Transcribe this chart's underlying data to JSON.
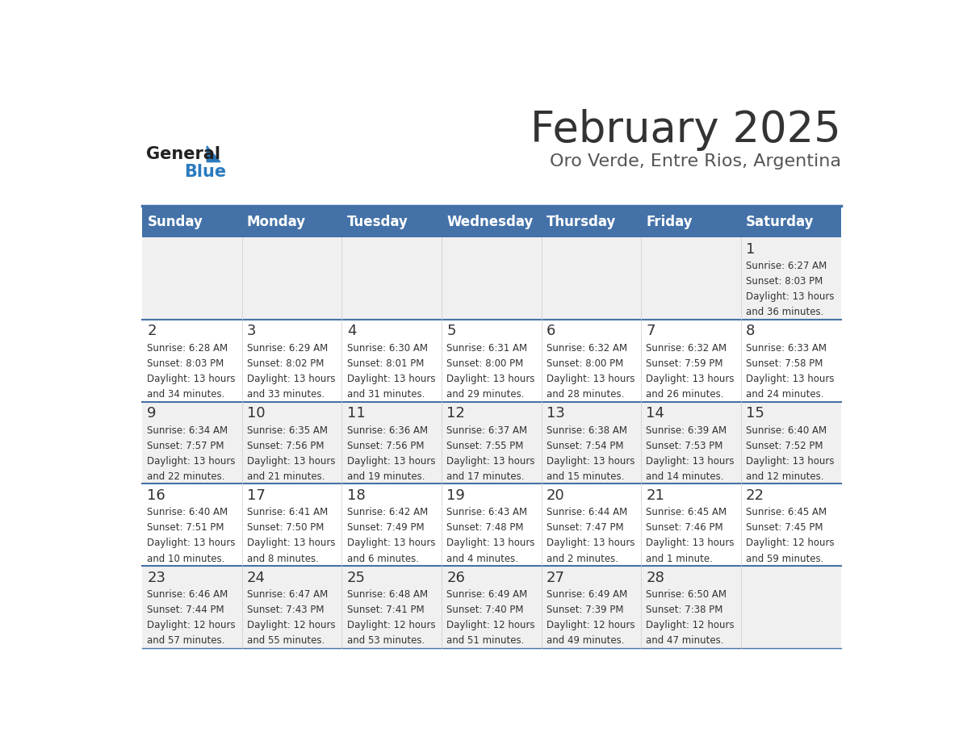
{
  "title": "February 2025",
  "subtitle": "Oro Verde, Entre Rios, Argentina",
  "header_bg": "#4472a8",
  "header_text": "#ffffff",
  "row_bg_odd": "#f0f0f0",
  "row_bg_even": "#ffffff",
  "separator_color": "#4472a8",
  "day_headers": [
    "Sunday",
    "Monday",
    "Tuesday",
    "Wednesday",
    "Thursday",
    "Friday",
    "Saturday"
  ],
  "days": [
    {
      "day": 1,
      "col": 6,
      "row": 0,
      "sunrise": "6:27 AM",
      "sunset": "8:03 PM",
      "daylight_line1": "Daylight: 13 hours",
      "daylight_line2": "and 36 minutes."
    },
    {
      "day": 2,
      "col": 0,
      "row": 1,
      "sunrise": "6:28 AM",
      "sunset": "8:03 PM",
      "daylight_line1": "Daylight: 13 hours",
      "daylight_line2": "and 34 minutes."
    },
    {
      "day": 3,
      "col": 1,
      "row": 1,
      "sunrise": "6:29 AM",
      "sunset": "8:02 PM",
      "daylight_line1": "Daylight: 13 hours",
      "daylight_line2": "and 33 minutes."
    },
    {
      "day": 4,
      "col": 2,
      "row": 1,
      "sunrise": "6:30 AM",
      "sunset": "8:01 PM",
      "daylight_line1": "Daylight: 13 hours",
      "daylight_line2": "and 31 minutes."
    },
    {
      "day": 5,
      "col": 3,
      "row": 1,
      "sunrise": "6:31 AM",
      "sunset": "8:00 PM",
      "daylight_line1": "Daylight: 13 hours",
      "daylight_line2": "and 29 minutes."
    },
    {
      "day": 6,
      "col": 4,
      "row": 1,
      "sunrise": "6:32 AM",
      "sunset": "8:00 PM",
      "daylight_line1": "Daylight: 13 hours",
      "daylight_line2": "and 28 minutes."
    },
    {
      "day": 7,
      "col": 5,
      "row": 1,
      "sunrise": "6:32 AM",
      "sunset": "7:59 PM",
      "daylight_line1": "Daylight: 13 hours",
      "daylight_line2": "and 26 minutes."
    },
    {
      "day": 8,
      "col": 6,
      "row": 1,
      "sunrise": "6:33 AM",
      "sunset": "7:58 PM",
      "daylight_line1": "Daylight: 13 hours",
      "daylight_line2": "and 24 minutes."
    },
    {
      "day": 9,
      "col": 0,
      "row": 2,
      "sunrise": "6:34 AM",
      "sunset": "7:57 PM",
      "daylight_line1": "Daylight: 13 hours",
      "daylight_line2": "and 22 minutes."
    },
    {
      "day": 10,
      "col": 1,
      "row": 2,
      "sunrise": "6:35 AM",
      "sunset": "7:56 PM",
      "daylight_line1": "Daylight: 13 hours",
      "daylight_line2": "and 21 minutes."
    },
    {
      "day": 11,
      "col": 2,
      "row": 2,
      "sunrise": "6:36 AM",
      "sunset": "7:56 PM",
      "daylight_line1": "Daylight: 13 hours",
      "daylight_line2": "and 19 minutes."
    },
    {
      "day": 12,
      "col": 3,
      "row": 2,
      "sunrise": "6:37 AM",
      "sunset": "7:55 PM",
      "daylight_line1": "Daylight: 13 hours",
      "daylight_line2": "and 17 minutes."
    },
    {
      "day": 13,
      "col": 4,
      "row": 2,
      "sunrise": "6:38 AM",
      "sunset": "7:54 PM",
      "daylight_line1": "Daylight: 13 hours",
      "daylight_line2": "and 15 minutes."
    },
    {
      "day": 14,
      "col": 5,
      "row": 2,
      "sunrise": "6:39 AM",
      "sunset": "7:53 PM",
      "daylight_line1": "Daylight: 13 hours",
      "daylight_line2": "and 14 minutes."
    },
    {
      "day": 15,
      "col": 6,
      "row": 2,
      "sunrise": "6:40 AM",
      "sunset": "7:52 PM",
      "daylight_line1": "Daylight: 13 hours",
      "daylight_line2": "and 12 minutes."
    },
    {
      "day": 16,
      "col": 0,
      "row": 3,
      "sunrise": "6:40 AM",
      "sunset": "7:51 PM",
      "daylight_line1": "Daylight: 13 hours",
      "daylight_line2": "and 10 minutes."
    },
    {
      "day": 17,
      "col": 1,
      "row": 3,
      "sunrise": "6:41 AM",
      "sunset": "7:50 PM",
      "daylight_line1": "Daylight: 13 hours",
      "daylight_line2": "and 8 minutes."
    },
    {
      "day": 18,
      "col": 2,
      "row": 3,
      "sunrise": "6:42 AM",
      "sunset": "7:49 PM",
      "daylight_line1": "Daylight: 13 hours",
      "daylight_line2": "and 6 minutes."
    },
    {
      "day": 19,
      "col": 3,
      "row": 3,
      "sunrise": "6:43 AM",
      "sunset": "7:48 PM",
      "daylight_line1": "Daylight: 13 hours",
      "daylight_line2": "and 4 minutes."
    },
    {
      "day": 20,
      "col": 4,
      "row": 3,
      "sunrise": "6:44 AM",
      "sunset": "7:47 PM",
      "daylight_line1": "Daylight: 13 hours",
      "daylight_line2": "and 2 minutes."
    },
    {
      "day": 21,
      "col": 5,
      "row": 3,
      "sunrise": "6:45 AM",
      "sunset": "7:46 PM",
      "daylight_line1": "Daylight: 13 hours",
      "daylight_line2": "and 1 minute."
    },
    {
      "day": 22,
      "col": 6,
      "row": 3,
      "sunrise": "6:45 AM",
      "sunset": "7:45 PM",
      "daylight_line1": "Daylight: 12 hours",
      "daylight_line2": "and 59 minutes."
    },
    {
      "day": 23,
      "col": 0,
      "row": 4,
      "sunrise": "6:46 AM",
      "sunset": "7:44 PM",
      "daylight_line1": "Daylight: 12 hours",
      "daylight_line2": "and 57 minutes."
    },
    {
      "day": 24,
      "col": 1,
      "row": 4,
      "sunrise": "6:47 AM",
      "sunset": "7:43 PM",
      "daylight_line1": "Daylight: 12 hours",
      "daylight_line2": "and 55 minutes."
    },
    {
      "day": 25,
      "col": 2,
      "row": 4,
      "sunrise": "6:48 AM",
      "sunset": "7:41 PM",
      "daylight_line1": "Daylight: 12 hours",
      "daylight_line2": "and 53 minutes."
    },
    {
      "day": 26,
      "col": 3,
      "row": 4,
      "sunrise": "6:49 AM",
      "sunset": "7:40 PM",
      "daylight_line1": "Daylight: 12 hours",
      "daylight_line2": "and 51 minutes."
    },
    {
      "day": 27,
      "col": 4,
      "row": 4,
      "sunrise": "6:49 AM",
      "sunset": "7:39 PM",
      "daylight_line1": "Daylight: 12 hours",
      "daylight_line2": "and 49 minutes."
    },
    {
      "day": 28,
      "col": 5,
      "row": 4,
      "sunrise": "6:50 AM",
      "sunset": "7:38 PM",
      "daylight_line1": "Daylight: 12 hours",
      "daylight_line2": "and 47 minutes."
    }
  ],
  "num_rows": 5,
  "num_cols": 7,
  "logo_general_color": "#222222",
  "logo_blue_color": "#2b7bbf"
}
